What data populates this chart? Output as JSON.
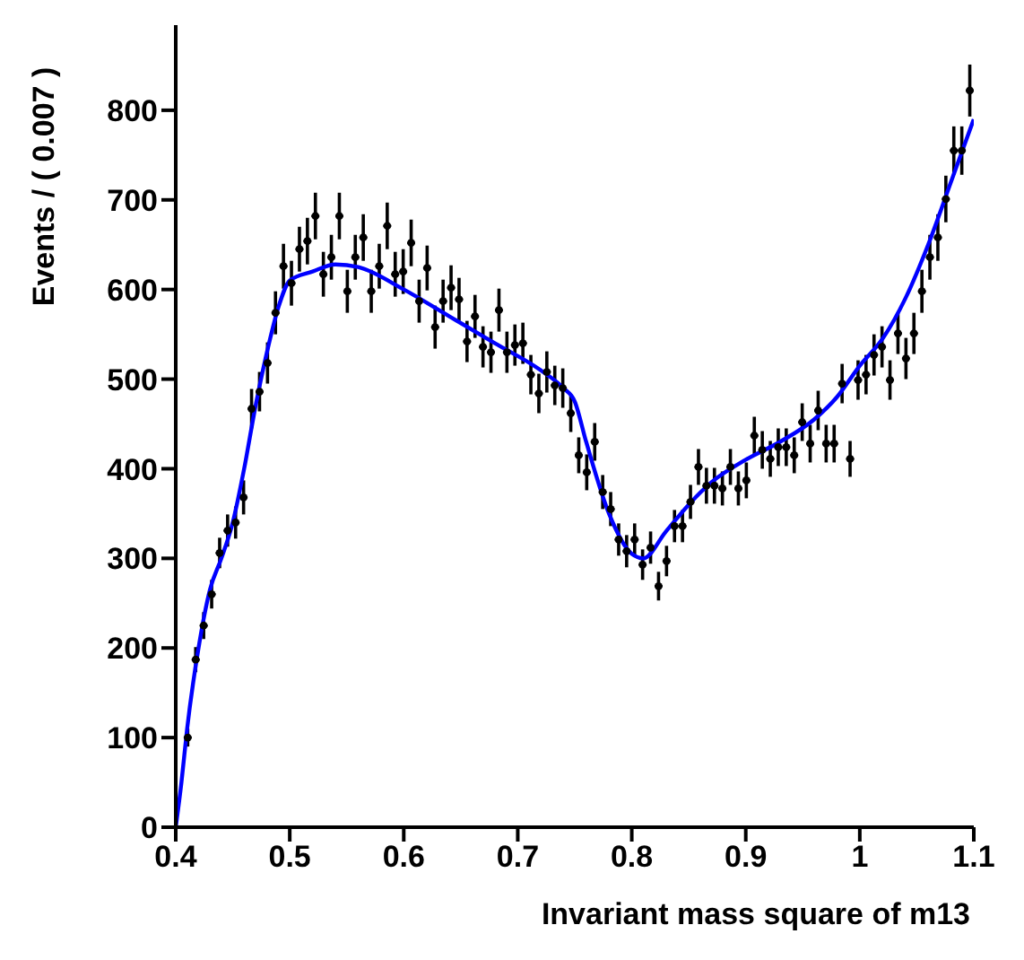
{
  "chart_data": {
    "type": "scatter",
    "xlabel": "Invariant mass square of m13",
    "ylabel": "Events / ( 0.007 )",
    "xlim": [
      0.4,
      1.1
    ],
    "xticks": [
      0.4,
      0.5,
      0.6,
      0.7,
      0.8,
      0.9,
      1,
      1.1
    ],
    "ylim": [
      0,
      895
    ],
    "yticks": [
      0,
      100,
      200,
      300,
      400,
      500,
      600,
      700,
      800
    ],
    "x": [
      0.4105,
      0.4175,
      0.4245,
      0.4315,
      0.4385,
      0.4455,
      0.4525,
      0.4595,
      0.4665,
      0.4735,
      0.4805,
      0.4875,
      0.4945,
      0.5015,
      0.5085,
      0.5155,
      0.5225,
      0.5295,
      0.5365,
      0.5435,
      0.5505,
      0.5575,
      0.5645,
      0.5715,
      0.5785,
      0.5855,
      0.5925,
      0.5995,
      0.6065,
      0.6135,
      0.6205,
      0.6275,
      0.6345,
      0.6415,
      0.6485,
      0.6555,
      0.6625,
      0.6695,
      0.6765,
      0.6835,
      0.6905,
      0.6975,
      0.7045,
      0.7115,
      0.7185,
      0.7255,
      0.7325,
      0.7395,
      0.7465,
      0.7535,
      0.7605,
      0.7675,
      0.7745,
      0.7815,
      0.7885,
      0.7955,
      0.8025,
      0.8095,
      0.8165,
      0.8235,
      0.8305,
      0.8375,
      0.8445,
      0.8515,
      0.8585,
      0.8655,
      0.8725,
      0.8795,
      0.8865,
      0.8935,
      0.9005,
      0.9075,
      0.9145,
      0.9215,
      0.9285,
      0.9355,
      0.9425,
      0.9495,
      0.9565,
      0.9635,
      0.9705,
      0.9775,
      0.9845,
      0.9915,
      0.9985,
      1.0055,
      1.0125,
      1.0195,
      1.0265,
      1.0335,
      1.0405,
      1.0475,
      1.0545,
      1.0615,
      1.0685,
      1.0755,
      1.0825,
      1.0895,
      1.0965
    ],
    "series": [
      {
        "color": "#000000",
        "marker": "circle",
        "values": [
          100,
          187,
          225,
          260,
          306,
          331,
          340,
          368,
          467,
          486,
          518,
          574,
          626,
          607,
          645,
          654,
          682,
          617,
          636,
          682,
          598,
          636,
          658,
          598,
          626,
          671,
          617,
          620,
          652,
          587,
          624,
          558,
          587,
          602,
          589,
          542,
          570,
          536,
          530,
          577,
          530,
          538,
          540,
          505,
          484,
          508,
          493,
          490,
          462,
          415,
          396,
          430,
          374,
          355,
          321,
          308,
          321,
          293,
          312,
          269,
          297,
          336,
          336,
          363,
          402,
          381,
          381,
          378,
          402,
          378,
          387,
          437,
          421,
          411,
          424,
          424,
          415,
          452,
          428,
          465,
          428,
          428,
          495,
          411,
          499,
          505,
          527,
          536,
          499,
          551,
          523,
          551,
          598,
          636,
          658,
          701,
          755,
          755,
          822
        ],
        "errors": [
          10,
          14,
          15,
          16,
          17,
          18,
          18,
          19,
          22,
          22,
          23,
          24,
          25,
          25,
          25,
          26,
          26,
          25,
          25,
          26,
          24,
          25,
          26,
          24,
          25,
          26,
          25,
          25,
          26,
          24,
          25,
          24,
          24,
          25,
          24,
          23,
          24,
          23,
          23,
          24,
          23,
          23,
          23,
          22,
          22,
          23,
          22,
          22,
          21,
          20,
          20,
          21,
          19,
          19,
          18,
          18,
          18,
          17,
          18,
          16,
          17,
          18,
          18,
          19,
          20,
          20,
          20,
          19,
          20,
          19,
          20,
          21,
          21,
          20,
          21,
          21,
          20,
          21,
          21,
          22,
          21,
          21,
          22,
          20,
          22,
          22,
          23,
          23,
          22,
          23,
          23,
          23,
          24,
          25,
          26,
          26,
          27,
          27,
          29
        ],
        "xerrors": [
          0.0035,
          0.0035,
          0.0035,
          0.0035,
          0.0035,
          0.0035,
          0.0035,
          0.0035,
          0.0035,
          0.0035,
          0.0035,
          0.0035,
          0.0035,
          0.0035,
          0.0035,
          0.0035,
          0.0035,
          0.0035,
          0.0035,
          0.0035,
          0.0035,
          0.0035,
          0.0035,
          0.0035,
          0.0035,
          0.0035,
          0.0035,
          0.0035,
          0.0035,
          0.0035,
          0.0035,
          0.0035,
          0.0035,
          0.0035,
          0.0035,
          0.0035,
          0.0035,
          0.0035,
          0.0035,
          0.0035,
          0.0035,
          0.0035,
          0.0035,
          0.0035,
          0.0035,
          0.0035,
          0.0035,
          0.0035,
          0.0035,
          0.0035,
          0.0035,
          0.0035,
          0.0035,
          0.0035,
          0.0035,
          0.0035,
          0.0035,
          0.0035,
          0.0035,
          0.0035,
          0.0035,
          0.0035,
          0.0035,
          0.0035,
          0.0035,
          0.0035,
          0.0035,
          0.0035,
          0.0035,
          0.0035,
          0.0035,
          0.0035,
          0.0035,
          0.0035,
          0.0035,
          0.0035,
          0.0035,
          0.0035,
          0.0035,
          0.0035,
          0.0035,
          0.0035,
          0.0035,
          0.0035,
          0.0035,
          0.0035,
          0.0035,
          0.0035,
          0.0035,
          0.0035,
          0.0035,
          0.0035,
          0.0035,
          0.0035,
          0.0035,
          0.0035,
          0.0035,
          0.0035,
          0.0035
        ]
      },
      {
        "type": "line",
        "color": "#0000ff",
        "line_style": "solid",
        "marker": "none",
        "x": [
          0.4,
          0.405,
          0.41,
          0.42,
          0.43,
          0.44,
          0.45,
          0.46,
          0.47,
          0.48,
          0.49,
          0.5,
          0.52,
          0.54,
          0.56,
          0.6,
          0.64,
          0.68,
          0.72,
          0.74,
          0.75,
          0.76,
          0.78,
          0.8,
          0.81,
          0.83,
          0.85,
          0.87,
          0.9,
          0.93,
          0.96,
          0.98,
          1.0,
          1.02,
          1.04,
          1.06,
          1.08,
          1.1
        ],
        "values": [
          0,
          50,
          110,
          200,
          265,
          300,
          340,
          400,
          470,
          530,
          580,
          610,
          620,
          628,
          625,
          600,
          570,
          540,
          510,
          490,
          475,
          430,
          350,
          305,
          300,
          330,
          360,
          385,
          410,
          430,
          455,
          480,
          515,
          545,
          590,
          650,
          720,
          790
        ]
      }
    ]
  }
}
